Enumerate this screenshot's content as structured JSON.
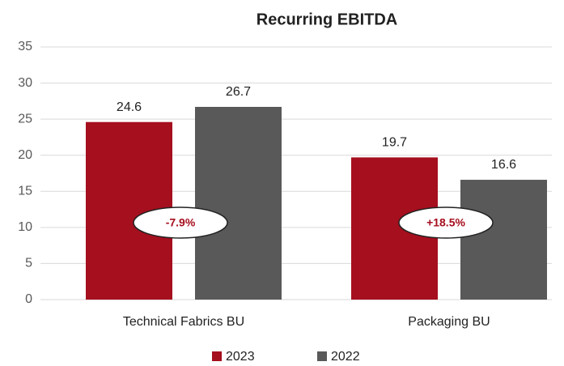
{
  "chart_data": {
    "type": "bar",
    "title": "Recurring EBITDA",
    "categories": [
      "Technical Fabrics BU",
      "Packaging BU"
    ],
    "series": [
      {
        "name": "2023",
        "color": "#a50f1e",
        "values": [
          24.6,
          19.7
        ]
      },
      {
        "name": "2022",
        "color": "#595959",
        "values": [
          26.7,
          16.6
        ]
      }
    ],
    "annotations": [
      "-7.9%",
      "+18.5%"
    ],
    "ylim": [
      0,
      35
    ],
    "yticks": [
      0,
      5,
      10,
      15,
      20,
      25,
      30,
      35
    ],
    "grid": true,
    "legend": "bottom"
  }
}
